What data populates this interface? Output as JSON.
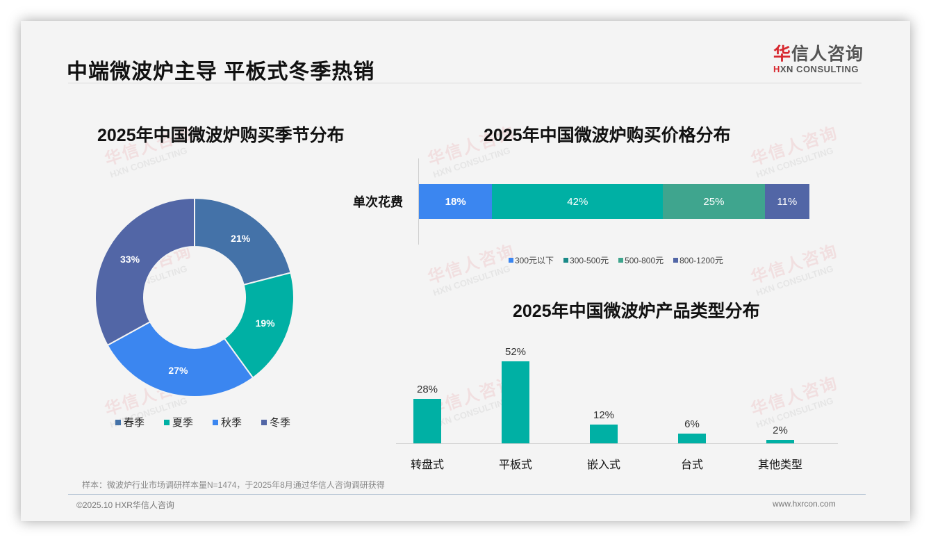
{
  "header": {
    "title": "中端微波炉主导 平板式冬季热销",
    "logo_cn_red": "华",
    "logo_cn_rest": "信人咨询",
    "logo_en_mark": "H",
    "logo_en_rest": "XN CONSULTING"
  },
  "watermark": {
    "cn": "华信人咨询",
    "en": "HXN CONSULTING"
  },
  "colors": {
    "spring": "#4472a8",
    "summer": "#00b0a4",
    "autumn": "#3b86f0",
    "winter": "#5266a6",
    "price_300": "#3b86f0",
    "price_300_500": "#00b0a4",
    "price_500_800": "#3fa58e",
    "price_800_1200": "#5266a6",
    "bar": "#00b0a4",
    "logo_red": "#d7282f"
  },
  "chart_data": [
    {
      "type": "pie",
      "title": "2025年中国微波炉购买季节分布",
      "categories": [
        "春季",
        "夏季",
        "秋季",
        "冬季"
      ],
      "values": [
        21,
        19,
        27,
        33
      ],
      "labels": [
        "21%",
        "19%",
        "27%",
        "33%"
      ],
      "donut": true,
      "legend_position": "bottom"
    },
    {
      "type": "bar",
      "orientation": "horizontal-stacked-100",
      "title": "2025年中国微波炉购买价格分布",
      "categories": [
        "单次花费"
      ],
      "series": [
        {
          "name": "300元以下",
          "values": [
            18
          ],
          "label": "18%"
        },
        {
          "name": "300-500元",
          "values": [
            42
          ],
          "label": "42%"
        },
        {
          "name": "500-800元",
          "values": [
            25
          ],
          "label": "25%"
        },
        {
          "name": "800-1200元",
          "values": [
            11
          ],
          "label": "11%"
        }
      ],
      "legend_position": "bottom"
    },
    {
      "type": "bar",
      "title": "2025年中国微波炉产品类型分布",
      "categories": [
        "转盘式",
        "平板式",
        "嵌入式",
        "台式",
        "其他类型"
      ],
      "values": [
        28,
        52,
        12,
        6,
        2
      ],
      "labels": [
        "28%",
        "52%",
        "12%",
        "6%",
        "2%"
      ],
      "grid": false
    }
  ],
  "footer": {
    "note": "样本：微波炉行业市场调研样本量N=1474，于2025年8月通过华信人咨询调研获得",
    "copyright": "©2025.10 HXR华信人咨询",
    "website": "www.hxrcon.com"
  }
}
